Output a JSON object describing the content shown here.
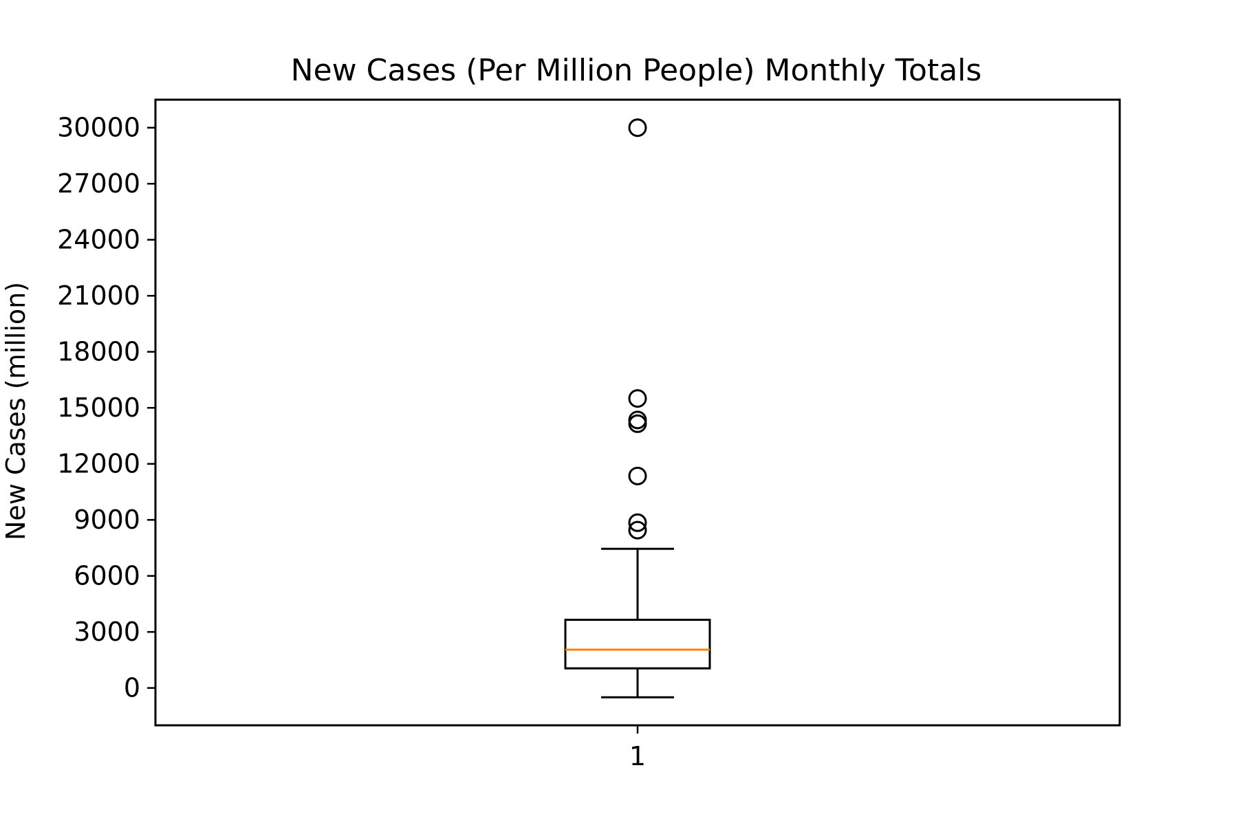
{
  "chart_data": {
    "type": "box",
    "title": "New Cases (Per Million People) Monthly Totals",
    "xlabel": "",
    "ylabel": "New Cases (million)",
    "categories": [
      "1"
    ],
    "yticks": [
      0,
      3000,
      6000,
      9000,
      12000,
      15000,
      18000,
      21000,
      24000,
      27000,
      30000
    ],
    "ylim": [
      -2000,
      31500
    ],
    "grid": false,
    "boxes": [
      {
        "category": "1",
        "whisker_low": -500,
        "q1": 1050,
        "median": 2050,
        "q3": 3650,
        "whisker_high": 7450,
        "outliers": [
          8450,
          8850,
          11350,
          14150,
          14350,
          15500,
          30000
        ]
      }
    ],
    "colors": {
      "box": "#000000",
      "median": "#ff7f0e",
      "outlier": "#000000"
    }
  }
}
